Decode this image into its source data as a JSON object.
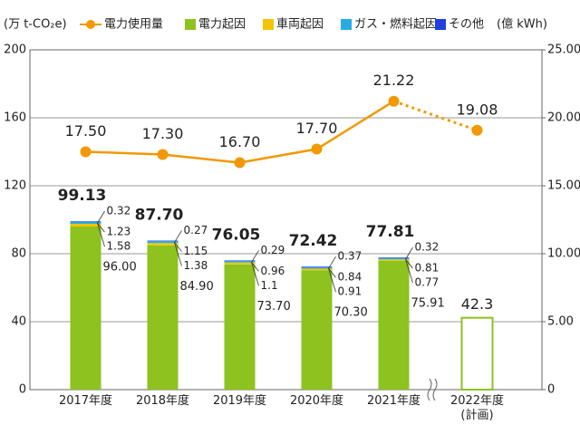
{
  "chart_data": {
    "type": "bar",
    "y_label": "(万 t-CO₂e)",
    "y2_label": "(億 kWh)",
    "categories": [
      "2017年度",
      "2018年度",
      "2019年度",
      "2020年度",
      "2021年度",
      "2022年度\n(計画)"
    ],
    "series": [
      {
        "name": "電力起因",
        "color": "#8dc21f",
        "values": [
          96.0,
          84.9,
          73.7,
          70.3,
          75.91,
          null
        ],
        "value_labels": [
          "96.00",
          "84.90",
          "73.70",
          "70.30",
          "75.91",
          null
        ]
      },
      {
        "name": "車両起因",
        "color": "#f5c400",
        "values": [
          1.58,
          1.38,
          1.1,
          0.91,
          0.77,
          null
        ]
      },
      {
        "name": "ガス・燃料起因",
        "color": "#29abe2",
        "values": [
          1.23,
          1.15,
          0.96,
          0.84,
          0.81,
          null
        ]
      },
      {
        "name": "その他",
        "color": "#1f3fe0",
        "values": [
          0.32,
          0.27,
          0.29,
          0.37,
          0.32,
          null
        ]
      }
    ],
    "totals": [
      99.13,
      87.7,
      76.05,
      72.42,
      77.81,
      null
    ],
    "total_labels": [
      "99.13",
      "87.70",
      "76.05",
      "72.42",
      "77.81",
      null
    ],
    "plan_values": [
      null,
      null,
      null,
      null,
      null,
      42.3
    ],
    "plan_color": "#8dc21f",
    "line": {
      "name": "電力使用量",
      "color": "#f39800",
      "axis": "y2",
      "dashed_last_segment": true,
      "values": [
        17.5,
        17.3,
        16.7,
        17.7,
        21.22,
        19.08
      ],
      "value_labels": [
        "17.50",
        "17.30",
        "16.70",
        "17.70",
        "21.22",
        "19.08"
      ]
    },
    "ylim": [
      0,
      200
    ],
    "yticks": [
      0,
      40,
      80,
      120,
      160,
      200
    ],
    "y2lim": [
      0,
      25
    ],
    "y2ticks": [
      {
        "value": 0,
        "label": "0"
      },
      {
        "value": 5,
        "label": "5.00"
      },
      {
        "value": 10,
        "label": "10.00"
      },
      {
        "value": 15,
        "label": "15.00"
      },
      {
        "value": 20,
        "label": "20.00"
      },
      {
        "value": 25,
        "label": "25.00"
      }
    ],
    "grid": true
  }
}
